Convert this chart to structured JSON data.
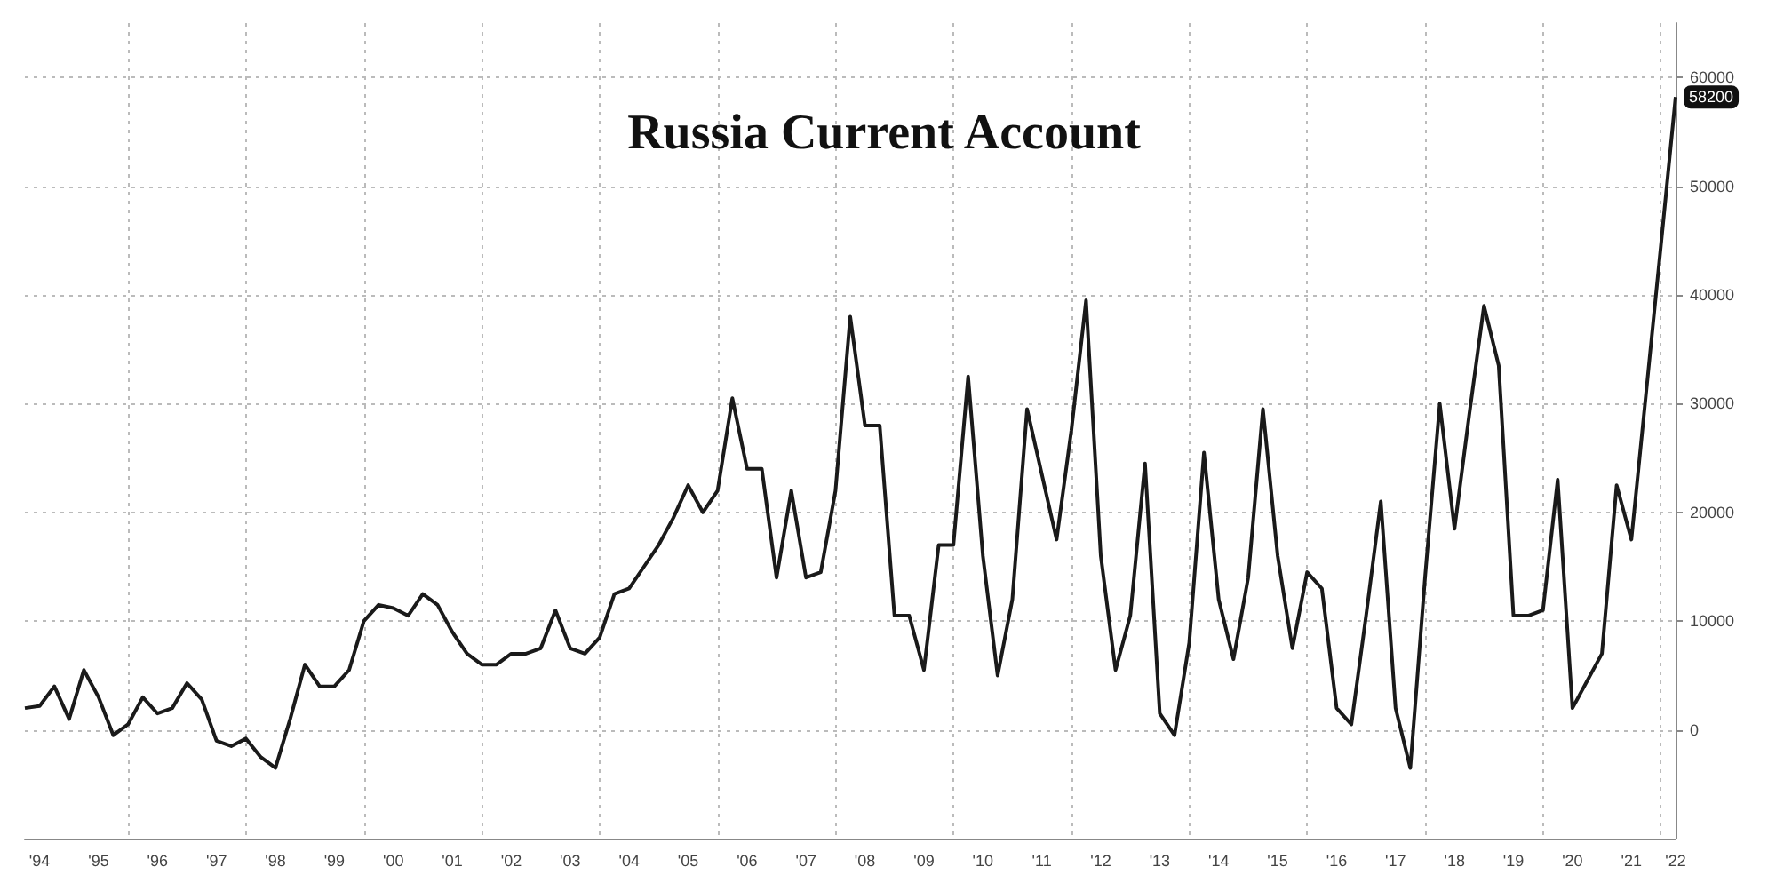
{
  "chart_data": {
    "type": "line",
    "title": "Russia Current Account",
    "categories": [
      null,
      "'94",
      null,
      null,
      null,
      "'95",
      null,
      null,
      null,
      "'96",
      null,
      null,
      null,
      "'97",
      null,
      null,
      null,
      "'98",
      null,
      null,
      null,
      "'99",
      null,
      null,
      null,
      "'00",
      null,
      null,
      null,
      "'01",
      null,
      null,
      null,
      "'02",
      null,
      null,
      null,
      "'03",
      null,
      null,
      null,
      "'04",
      null,
      null,
      null,
      "'05",
      null,
      null,
      null,
      "'06",
      null,
      null,
      null,
      "'07",
      null,
      null,
      null,
      "'08",
      null,
      null,
      null,
      "'09",
      null,
      null,
      null,
      "'10",
      null,
      null,
      null,
      "'11",
      null,
      null,
      null,
      "'12",
      null,
      null,
      null,
      "'13",
      null,
      null,
      null,
      "'14",
      null,
      null,
      null,
      "'15",
      null,
      null,
      null,
      "'16",
      null,
      null,
      null,
      "'17",
      null,
      null,
      null,
      "'18",
      null,
      null,
      null,
      "'19",
      null,
      null,
      null,
      "'20",
      null,
      null,
      null,
      "'21",
      null,
      null,
      "'22"
    ],
    "series": [
      {
        "color": "#1a1a1a",
        "values": [
          2000,
          2200,
          4000,
          1000,
          5500,
          3000,
          -500,
          500,
          3000,
          1500,
          2000,
          4300,
          2800,
          -1000,
          -1500,
          -800,
          -2500,
          -3500,
          1000,
          6000,
          4000,
          4000,
          5500,
          10000,
          11500,
          11200,
          10500,
          12500,
          11500,
          9000,
          7000,
          6000,
          6000,
          7000,
          7000,
          7500,
          11000,
          7500,
          7000,
          8500,
          12500,
          13000,
          15000,
          17000,
          19500,
          22500,
          20000,
          22000,
          30500,
          24000,
          24000,
          14000,
          22000,
          14000,
          14500,
          22000,
          38000,
          28000,
          28000,
          10500,
          10500,
          5500,
          17000,
          17000,
          32500,
          16000,
          5000,
          12000,
          29500,
          23500,
          17500,
          27500,
          39500,
          16000,
          5500,
          10500,
          24500,
          1500,
          -500,
          8000,
          25500,
          12000,
          6500,
          14000,
          29500,
          16000,
          7500,
          14500,
          13000,
          2000,
          500,
          10500,
          21000,
          2000,
          -3500,
          14000,
          30000,
          18500,
          29000,
          39000,
          33500,
          10500,
          10500,
          11000,
          23000,
          2000,
          4500,
          7000,
          22500,
          17500,
          31000,
          44500,
          58200
        ]
      }
    ],
    "annotations": [
      {
        "text": "58200",
        "x": "'22",
        "y": 58200
      }
    ],
    "ylim": [
      -10000,
      65000
    ],
    "yticks": [
      0,
      10000,
      20000,
      30000,
      40000,
      50000,
      60000
    ],
    "grid": true,
    "marker": "none",
    "line_style": "solid"
  }
}
